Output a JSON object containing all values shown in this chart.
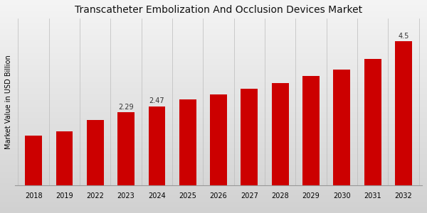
{
  "title": "Transcatheter Embolization And Occlusion Devices Market",
  "ylabel": "Market Value in USD Billion",
  "categories": [
    "2018",
    "2019",
    "2022",
    "2023",
    "2024",
    "2025",
    "2026",
    "2027",
    "2028",
    "2029",
    "2030",
    "2031",
    "2032"
  ],
  "values": [
    1.55,
    1.68,
    2.05,
    2.29,
    2.47,
    2.68,
    2.85,
    3.02,
    3.2,
    3.42,
    3.62,
    3.95,
    4.5
  ],
  "bar_color": "#cc0000",
  "bar_annotations": {
    "2023": "2.29",
    "2024": "2.47",
    "2032": "4.5"
  },
  "bg_top": "#f5f5f5",
  "bg_bottom": "#d8d8d8",
  "grid_color": "#cccccc",
  "bottom_bar_color": "#cc0000",
  "title_fontsize": 10,
  "ylabel_fontsize": 7,
  "tick_fontsize": 7,
  "annotation_fontsize": 7
}
